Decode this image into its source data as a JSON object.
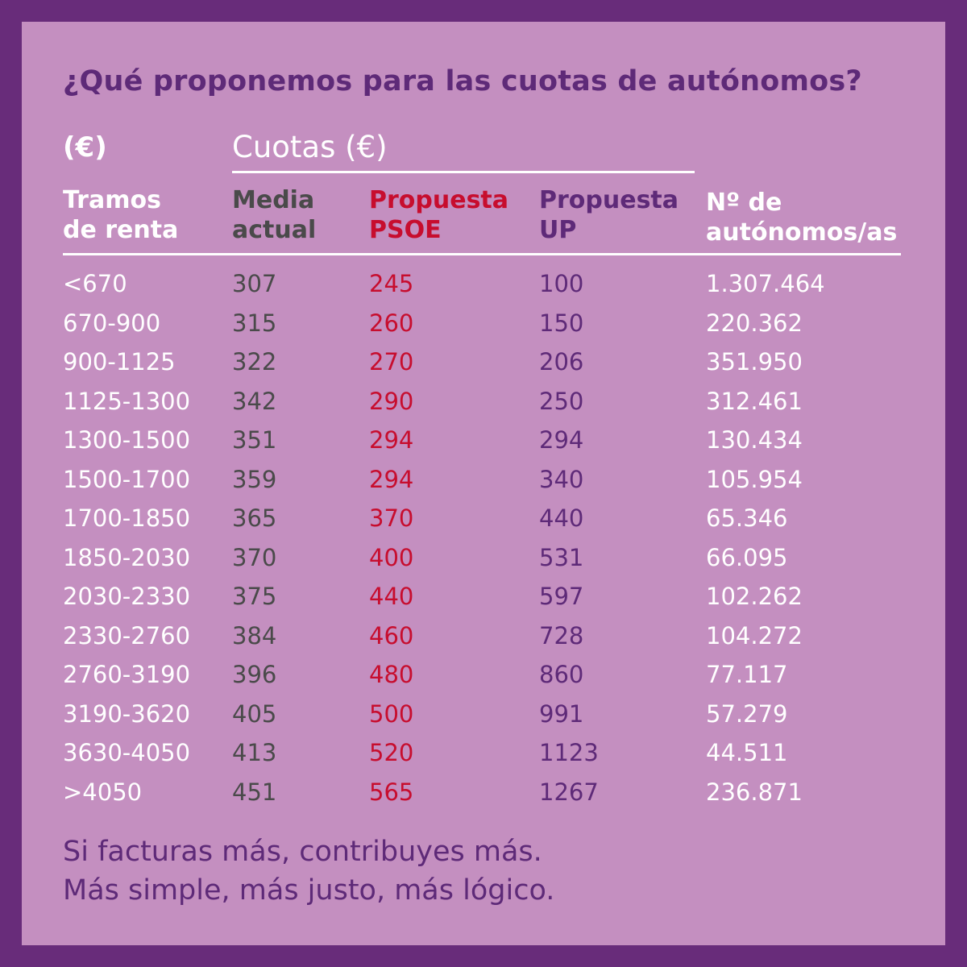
{
  "title": "¿Qué proponemos para las cuotas de autónomos?",
  "unit_label": "(€)",
  "cuotas_label": "Cuotas (€)",
  "colors": {
    "outer_border": "#682c7a",
    "panel_bg": "#c48fc0",
    "title": "#5e2a78",
    "media": "#4a4a4a",
    "psoe": "#c70d2e",
    "up": "#5e2a78",
    "white": "#ffffff"
  },
  "headers": {
    "renta": [
      "Tramos",
      "de renta"
    ],
    "media": [
      "Media",
      "actual"
    ],
    "psoe": [
      "Propuesta",
      "PSOE"
    ],
    "up": [
      "Propuesta",
      "UP"
    ],
    "num": [
      "Nº de",
      "autónomos/as"
    ]
  },
  "rows": [
    {
      "renta": "<670",
      "media": "307",
      "psoe": "245",
      "up": "100",
      "num": "1.307.464"
    },
    {
      "renta": "670-900",
      "media": "315",
      "psoe": "260",
      "up": "150",
      "num": "220.362"
    },
    {
      "renta": "900-1125",
      "media": "322",
      "psoe": "270",
      "up": "206",
      "num": "351.950"
    },
    {
      "renta": "1125-1300",
      "media": "342",
      "psoe": "290",
      "up": "250",
      "num": "312.461"
    },
    {
      "renta": "1300-1500",
      "media": "351",
      "psoe": "294",
      "up": "294",
      "num": "130.434"
    },
    {
      "renta": "1500-1700",
      "media": "359",
      "psoe": "294",
      "up": "340",
      "num": "105.954"
    },
    {
      "renta": "1700-1850",
      "media": "365",
      "psoe": "370",
      "up": "440",
      "num": "65.346"
    },
    {
      "renta": "1850-2030",
      "media": "370",
      "psoe": "400",
      "up": "531",
      "num": "66.095"
    },
    {
      "renta": "2030-2330",
      "media": "375",
      "psoe": "440",
      "up": "597",
      "num": "102.262"
    },
    {
      "renta": "2330-2760",
      "media": "384",
      "psoe": "460",
      "up": "728",
      "num": "104.272"
    },
    {
      "renta": "2760-3190",
      "media": "396",
      "psoe": "480",
      "up": "860",
      "num": "77.117"
    },
    {
      "renta": "3190-3620",
      "media": "405",
      "psoe": "500",
      "up": "991",
      "num": "57.279"
    },
    {
      "renta": "3630-4050",
      "media": "413",
      "psoe": "520",
      "up": "1123",
      "num": "44.511"
    },
    {
      "renta": ">4050",
      "media": "451",
      "psoe": "565",
      "up": "1267",
      "num": "236.871"
    }
  ],
  "footer": [
    "Si facturas más, contribuyes más.",
    "Más simple, más justo, más lógico."
  ]
}
